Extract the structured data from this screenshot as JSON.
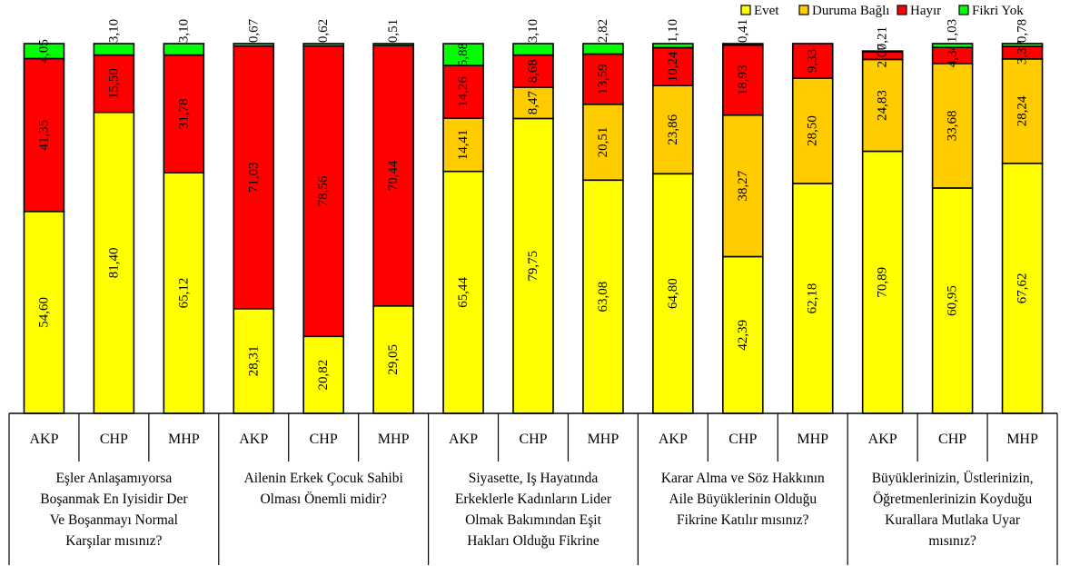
{
  "chart_data": {
    "type": "bar",
    "stacked": true,
    "percent_stacked": true,
    "ylim": [
      0,
      100
    ],
    "grid": false,
    "legend_placement": "top-right",
    "series": [
      {
        "name": "Evet",
        "color": "#ffff00"
      },
      {
        "name": "Duruma Bağlı",
        "color": "#ffcc00"
      },
      {
        "name": "Hayır",
        "color": "#ff0000"
      },
      {
        "name": "Fikri Yok",
        "color": "#00ff00"
      }
    ],
    "groups": [
      {
        "label_lines": [
          "Eşler Anlaşamıyorsa",
          "Boşanmak En Iyisidir Der",
          "Ve Boşanmayı Normal",
          "Karşılar mısınız?"
        ],
        "bars": [
          {
            "party": "AKP",
            "values": [
              54.6,
              null,
              41.35,
              4.05
            ],
            "labels": [
              "54,60",
              "",
              "41,35",
              "4,05"
            ]
          },
          {
            "party": "CHP",
            "values": [
              81.4,
              null,
              15.5,
              3.1
            ],
            "labels": [
              "81,40",
              "",
              "15,50",
              "3,10"
            ]
          },
          {
            "party": "MHP",
            "values": [
              65.12,
              null,
              31.78,
              3.1
            ],
            "labels": [
              "65,12",
              "",
              "31,78",
              "3,10"
            ]
          }
        ]
      },
      {
        "label_lines": [
          "Ailenin Erkek Çocuk Sahibi",
          "Olması Önemli midir?"
        ],
        "bars": [
          {
            "party": "AKP",
            "values": [
              28.31,
              null,
              71.03,
              0.67
            ],
            "labels": [
              "28,31",
              "",
              "71,03",
              "0,67"
            ]
          },
          {
            "party": "CHP",
            "values": [
              20.82,
              null,
              78.56,
              0.62
            ],
            "labels": [
              "20,82",
              "",
              "78,56",
              "0,62"
            ]
          },
          {
            "party": "MHP",
            "values": [
              29.05,
              null,
              70.44,
              0.51
            ],
            "labels": [
              "29,05",
              "",
              "70,44",
              "0,51"
            ]
          }
        ]
      },
      {
        "label_lines": [
          "Siyasette, Iş Hayatında",
          "Erkeklerle Kadınların Lider",
          "Olmak Bakımından Eşit",
          "Hakları Olduğu Fikrine"
        ],
        "bars": [
          {
            "party": "AKP",
            "values": [
              65.44,
              14.41,
              14.26,
              5.88
            ],
            "labels": [
              "65,44",
              "14,41",
              "14,26",
              "5,88"
            ]
          },
          {
            "party": "CHP",
            "values": [
              79.75,
              8.47,
              8.68,
              3.1
            ],
            "labels": [
              "79,75",
              "8,47",
              "8,68",
              "3,10"
            ]
          },
          {
            "party": "MHP",
            "values": [
              63.08,
              20.51,
              13.59,
              2.82
            ],
            "labels": [
              "63,08",
              "20,51",
              "13,59",
              "2,82"
            ]
          }
        ]
      },
      {
        "label_lines": [
          "Karar Alma ve Söz Hakkının",
          "Aile Büyüklerinin Olduğu",
          "Fikrine Katılır mısınız?"
        ],
        "bars": [
          {
            "party": "AKP",
            "values": [
              64.8,
              23.86,
              10.24,
              1.1
            ],
            "labels": [
              "64,80",
              "23,86",
              "10,24",
              "1,10"
            ]
          },
          {
            "party": "CHP",
            "values": [
              42.39,
              38.27,
              18.93,
              0.41
            ],
            "labels": [
              "42,39",
              "38,27",
              "18,93",
              "0,41"
            ]
          },
          {
            "party": "MHP",
            "values": [
              62.18,
              28.5,
              9.33,
              null
            ],
            "labels": [
              "62,18",
              "28,50",
              "9,33",
              ""
            ]
          }
        ]
      },
      {
        "label_lines": [
          "Büyüklerinizin, Üstlerinizin,",
          "Öğretmenlerinizin Koyduğu",
          "Kurallara Mutlaka Uyar",
          "mısınız?"
        ],
        "bars": [
          {
            "party": "AKP",
            "values": [
              70.89,
              24.83,
              2.07,
              0.21
            ],
            "labels": [
              "70,89",
              "24,83",
              "2,07",
              "0,21"
            ]
          },
          {
            "party": "CHP",
            "values": [
              60.95,
              33.68,
              4.34,
              1.03
            ],
            "labels": [
              "60,95",
              "33,68",
              "4,34",
              "1,03"
            ]
          },
          {
            "party": "MHP",
            "values": [
              67.62,
              28.24,
              3.37,
              0.78
            ],
            "labels": [
              "67,62",
              "28,24",
              "3,37",
              "0,78"
            ]
          }
        ]
      }
    ]
  }
}
